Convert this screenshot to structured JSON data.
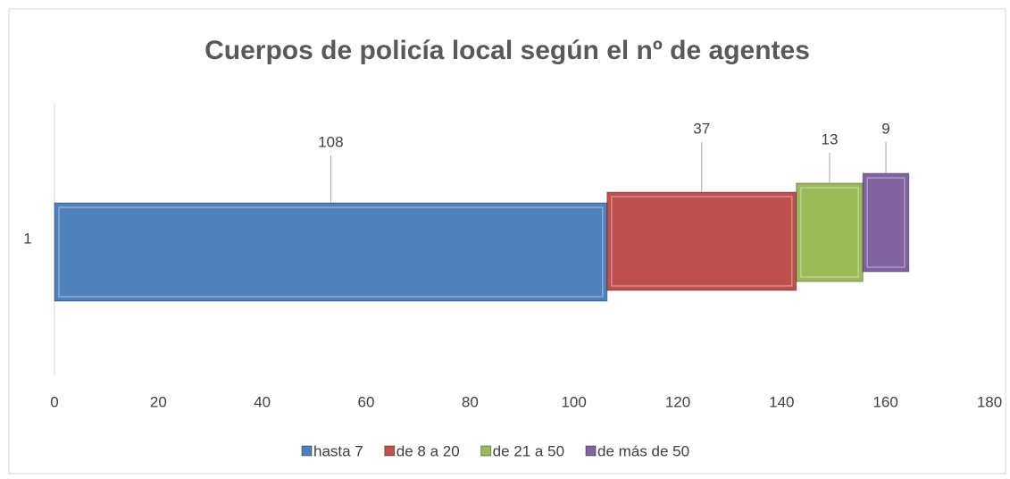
{
  "chart_data": {
    "type": "bar",
    "orientation": "horizontal",
    "stacked": true,
    "title": "Cuerpos de policía local según el nº de agentes",
    "categories": [
      "1"
    ],
    "series": [
      {
        "name": "hasta 7",
        "color": "#4f81bd",
        "values": [
          108
        ]
      },
      {
        "name": "de 8 a 20",
        "color": "#c0504d",
        "values": [
          37
        ]
      },
      {
        "name": "de 21 a 50",
        "color": "#9bbb59",
        "values": [
          13
        ]
      },
      {
        "name": "de más de 50",
        "color": "#8064a2",
        "values": [
          9
        ]
      }
    ],
    "xlim": [
      0,
      180
    ],
    "xticks": [
      0,
      20,
      40,
      60,
      80,
      100,
      120,
      140,
      160,
      180
    ],
    "legend": "bottom"
  }
}
